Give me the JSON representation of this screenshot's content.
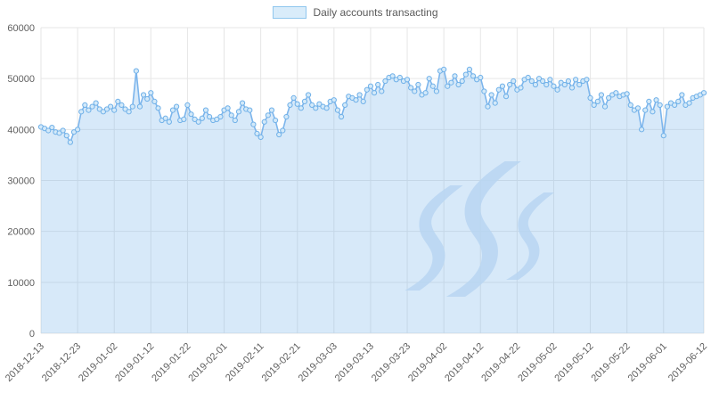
{
  "chart_data": {
    "type": "area",
    "title": "",
    "legend": "Daily accounts transacting",
    "xlabel": "",
    "ylabel": "",
    "ylim": [
      0,
      60000
    ],
    "grid": true,
    "legend_position": "top-center",
    "watermark": "steem-logo",
    "y_ticks": [
      0,
      10000,
      20000,
      30000,
      40000,
      50000,
      60000
    ],
    "x_tick_labels": [
      "2018-12-13",
      "2018-12-23",
      "2019-01-02",
      "2019-01-12",
      "2019-01-22",
      "2019-02-01",
      "2019-02-11",
      "2019-02-21",
      "2019-03-03",
      "2019-03-13",
      "2019-03-23",
      "2019-04-02",
      "2019-04-12",
      "2019-04-22",
      "2019-05-02",
      "2019-05-12",
      "2019-05-22",
      "2019-06-01",
      "2019-06-12"
    ],
    "x_tick_indices": [
      0,
      10,
      20,
      30,
      40,
      50,
      60,
      70,
      80,
      90,
      100,
      110,
      120,
      130,
      140,
      150,
      160,
      170,
      181
    ],
    "x_start_date": "2018-12-13",
    "x_end_date": "2019-06-12",
    "values": [
      40500,
      40200,
      39800,
      40400,
      39500,
      39300,
      39800,
      38800,
      37500,
      39500,
      40000,
      43500,
      44800,
      43800,
      44500,
      45200,
      44000,
      43500,
      44000,
      44500,
      43800,
      45500,
      44800,
      44000,
      43500,
      44500,
      51500,
      44500,
      46800,
      46000,
      47200,
      45500,
      44200,
      41800,
      42200,
      41500,
      43800,
      44500,
      41800,
      42000,
      44800,
      43000,
      42000,
      41500,
      42200,
      43800,
      42500,
      41800,
      42000,
      42500,
      43800,
      44200,
      42800,
      41800,
      43500,
      45200,
      44000,
      43800,
      41000,
      39200,
      38500,
      41500,
      42800,
      43800,
      41800,
      39000,
      39800,
      42500,
      44800,
      46200,
      45000,
      44200,
      45500,
      46800,
      44800,
      44200,
      45000,
      44500,
      44200,
      45500,
      45800,
      43800,
      42500,
      44800,
      46500,
      46200,
      45800,
      46800,
      45500,
      47800,
      48500,
      47200,
      48800,
      47500,
      49500,
      50200,
      50500,
      49800,
      50200,
      49500,
      49800,
      48200,
      47500,
      48800,
      46800,
      47200,
      50000,
      48500,
      47500,
      51500,
      51800,
      48500,
      49200,
      50500,
      48800,
      49500,
      50800,
      51800,
      50500,
      49800,
      50200,
      47500,
      44500,
      46800,
      45200,
      47800,
      48500,
      46500,
      48800,
      49500,
      47800,
      48200,
      49800,
      50200,
      49500,
      48800,
      50000,
      49500,
      48800,
      49800,
      48500,
      47800,
      49200,
      48800,
      49500,
      48200,
      49800,
      48800,
      49500,
      49800,
      46200,
      44800,
      45500,
      46800,
      44500,
      46200,
      46800,
      47200,
      46500,
      46800,
      47000,
      44800,
      43800,
      44200,
      40000,
      43800,
      45500,
      43500,
      45800,
      44800,
      38800,
      44500,
      45200,
      44800,
      45500,
      46800,
      44800,
      45200,
      46200,
      46500,
      46800,
      47200
    ],
    "colors": {
      "line": "#7cb5ec",
      "area": "rgba(124,181,236,0.30)",
      "marker_fill": "#d3e9f9",
      "marker_stroke": "#6fb0e8",
      "grid": "#e6e6e6",
      "axis_text": "#606060",
      "watermark": "#b9d6f2"
    }
  }
}
